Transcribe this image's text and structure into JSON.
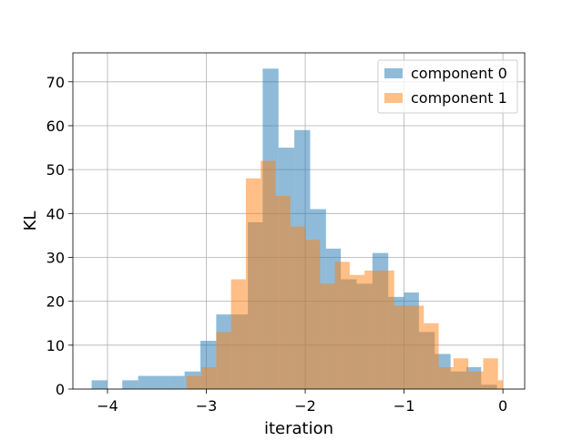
{
  "chart_data": {
    "type": "bar",
    "subtype": "histogram",
    "title": "",
    "xlabel": "iteration",
    "ylabel": "KL",
    "xlim": [
      -4.35,
      0.22
    ],
    "ylim": [
      0,
      76.6
    ],
    "xticks": [
      -4,
      -3,
      -2,
      -1,
      0
    ],
    "xtick_labels": [
      "−4",
      "−3",
      "−2",
      "−1",
      "0"
    ],
    "yticks": [
      0,
      10,
      20,
      30,
      40,
      50,
      60,
      70
    ],
    "grid": true,
    "legend_position": "top-right",
    "series": [
      {
        "name": "component 0",
        "color": "#1f77b4",
        "alpha": 0.5,
        "bins": [
          {
            "x0": -4.16,
            "x1": -4.0,
            "v": 2
          },
          {
            "x0": -4.0,
            "x1": -3.85,
            "v": 0
          },
          {
            "x0": -3.85,
            "x1": -3.69,
            "v": 2
          },
          {
            "x0": -3.69,
            "x1": -3.53,
            "v": 3
          },
          {
            "x0": -3.53,
            "x1": -3.37,
            "v": 3
          },
          {
            "x0": -3.37,
            "x1": -3.22,
            "v": 3
          },
          {
            "x0": -3.22,
            "x1": -3.06,
            "v": 4
          },
          {
            "x0": -3.06,
            "x1": -2.9,
            "v": 11
          },
          {
            "x0": -2.9,
            "x1": -2.74,
            "v": 17
          },
          {
            "x0": -2.74,
            "x1": -2.58,
            "v": 17
          },
          {
            "x0": -2.58,
            "x1": -2.43,
            "v": 38
          },
          {
            "x0": -2.43,
            "x1": -2.27,
            "v": 73
          },
          {
            "x0": -2.27,
            "x1": -2.11,
            "v": 55
          },
          {
            "x0": -2.11,
            "x1": -1.95,
            "v": 59
          },
          {
            "x0": -1.95,
            "x1": -1.79,
            "v": 41
          },
          {
            "x0": -1.79,
            "x1": -1.64,
            "v": 32
          },
          {
            "x0": -1.64,
            "x1": -1.48,
            "v": 25
          },
          {
            "x0": -1.48,
            "x1": -1.32,
            "v": 24
          },
          {
            "x0": -1.32,
            "x1": -1.16,
            "v": 31
          },
          {
            "x0": -1.16,
            "x1": -1.0,
            "v": 21
          },
          {
            "x0": -1.0,
            "x1": -0.85,
            "v": 22
          },
          {
            "x0": -0.85,
            "x1": -0.69,
            "v": 13
          },
          {
            "x0": -0.69,
            "x1": -0.53,
            "v": 8
          },
          {
            "x0": -0.53,
            "x1": -0.37,
            "v": 4
          },
          {
            "x0": -0.37,
            "x1": -0.22,
            "v": 5
          },
          {
            "x0": -0.22,
            "x1": -0.06,
            "v": 1
          }
        ]
      },
      {
        "name": "component 1",
        "color": "#ff7f0e",
        "alpha": 0.5,
        "bins": [
          {
            "x0": -3.2,
            "x1": -3.05,
            "v": 3
          },
          {
            "x0": -3.05,
            "x1": -2.9,
            "v": 5
          },
          {
            "x0": -2.9,
            "x1": -2.75,
            "v": 13
          },
          {
            "x0": -2.75,
            "x1": -2.6,
            "v": 25
          },
          {
            "x0": -2.6,
            "x1": -2.45,
            "v": 48
          },
          {
            "x0": -2.45,
            "x1": -2.3,
            "v": 52
          },
          {
            "x0": -2.3,
            "x1": -2.15,
            "v": 44
          },
          {
            "x0": -2.15,
            "x1": -2.0,
            "v": 37
          },
          {
            "x0": -2.0,
            "x1": -1.85,
            "v": 34
          },
          {
            "x0": -1.85,
            "x1": -1.7,
            "v": 24
          },
          {
            "x0": -1.7,
            "x1": -1.55,
            "v": 29
          },
          {
            "x0": -1.55,
            "x1": -1.4,
            "v": 26
          },
          {
            "x0": -1.4,
            "x1": -1.25,
            "v": 27
          },
          {
            "x0": -1.25,
            "x1": -1.1,
            "v": 27
          },
          {
            "x0": -1.1,
            "x1": -0.95,
            "v": 19
          },
          {
            "x0": -0.95,
            "x1": -0.8,
            "v": 19
          },
          {
            "x0": -0.8,
            "x1": -0.65,
            "v": 15
          },
          {
            "x0": -0.65,
            "x1": -0.5,
            "v": 5
          },
          {
            "x0": -0.5,
            "x1": -0.35,
            "v": 7
          },
          {
            "x0": -0.35,
            "x1": -0.2,
            "v": 4
          },
          {
            "x0": -0.2,
            "x1": -0.05,
            "v": 7
          },
          {
            "x0": -0.05,
            "x1": 0.0,
            "v": 2
          }
        ]
      }
    ]
  }
}
